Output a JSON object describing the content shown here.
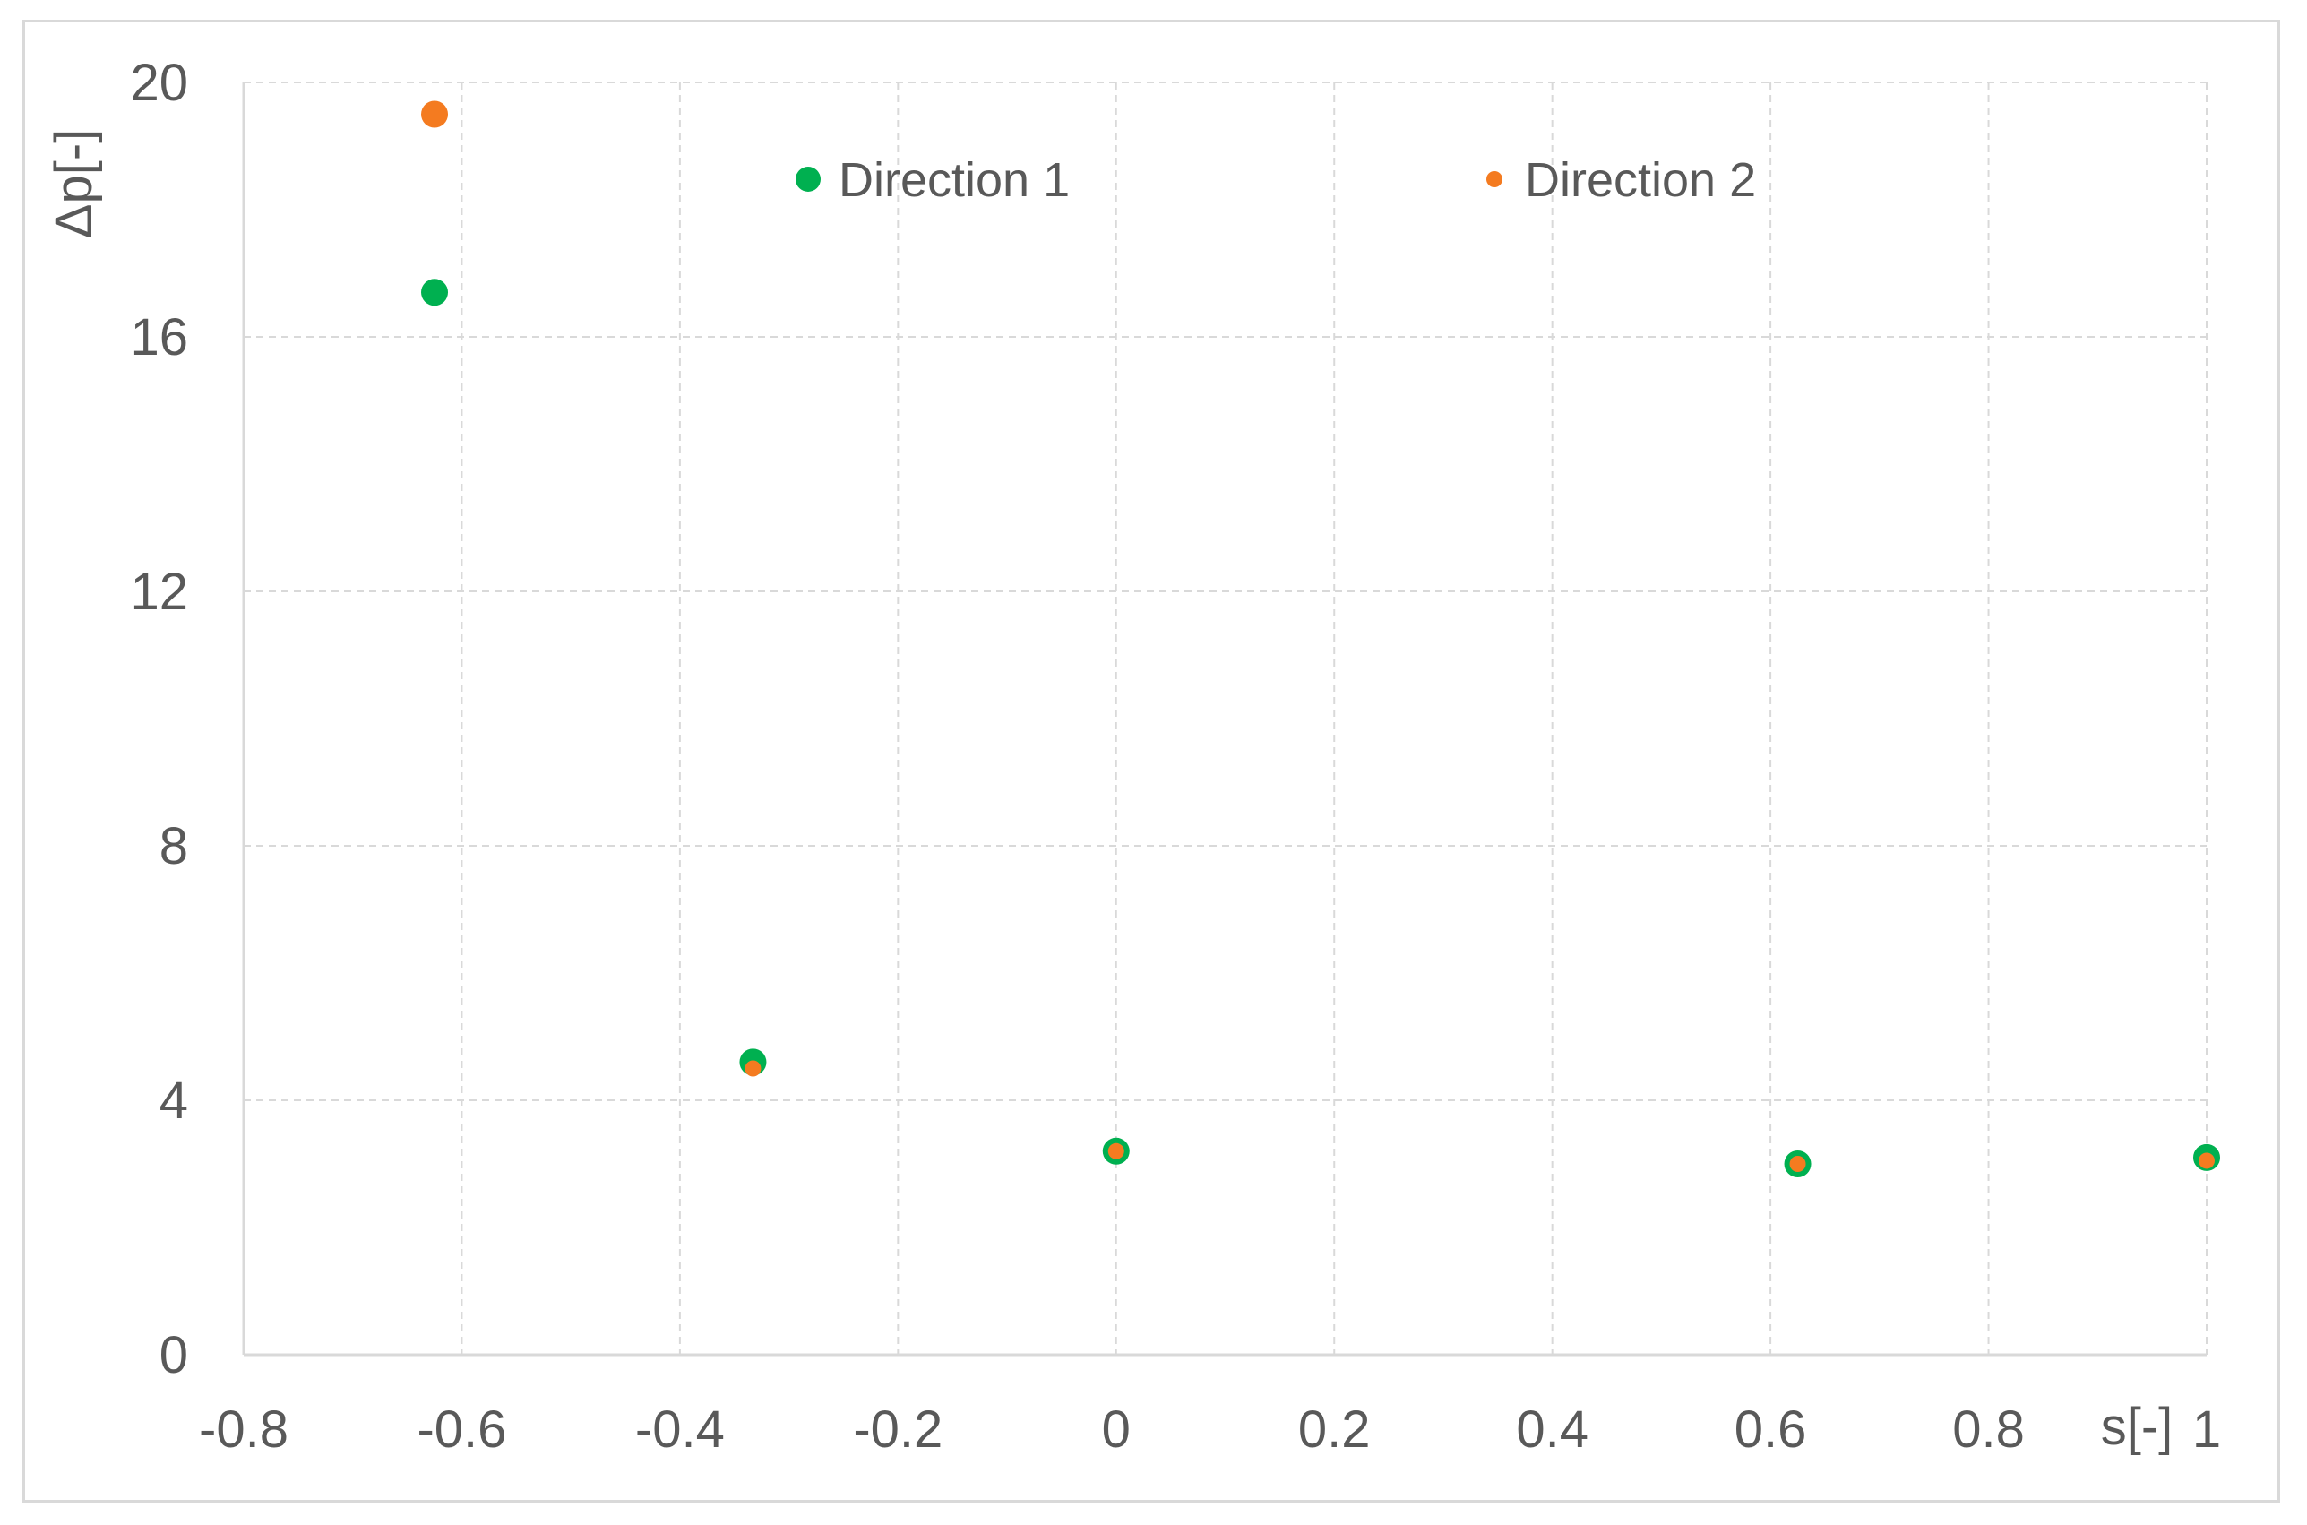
{
  "chart_data": {
    "type": "scatter",
    "title": "",
    "xlabel": "s[-]",
    "ylabel": "Δp[-]",
    "xlim": [
      -0.8,
      1
    ],
    "ylim": [
      0,
      20
    ],
    "xticks": [
      -0.8,
      -0.6,
      -0.4,
      -0.2,
      0,
      0.2,
      0.4,
      0.6,
      0.8,
      1
    ],
    "xtick_labels": [
      "-0.8",
      "-0.6",
      "-0.4",
      "-0.2",
      "0",
      "0.2",
      "0.4",
      "0.6",
      "0.8",
      "1"
    ],
    "yticks": [
      0,
      4,
      8,
      12,
      16,
      20
    ],
    "ytick_labels": [
      "0",
      "4",
      "8",
      "12",
      "16",
      "20"
    ],
    "grid": true,
    "legend_position": "top",
    "series": [
      {
        "name": "Direction 1",
        "color": "#00b050",
        "marker": "large-circle",
        "x": [
          -0.625,
          -0.333,
          0,
          0.625,
          1
        ],
        "y": [
          16.7,
          4.6,
          3.2,
          3.0,
          3.1
        ]
      },
      {
        "name": "Direction 2",
        "color": "#f47b20",
        "marker": "small-circle",
        "x": [
          -0.625,
          -0.333,
          0,
          0.625,
          1
        ],
        "y": [
          19.5,
          4.5,
          3.2,
          3.0,
          3.05
        ]
      }
    ]
  }
}
